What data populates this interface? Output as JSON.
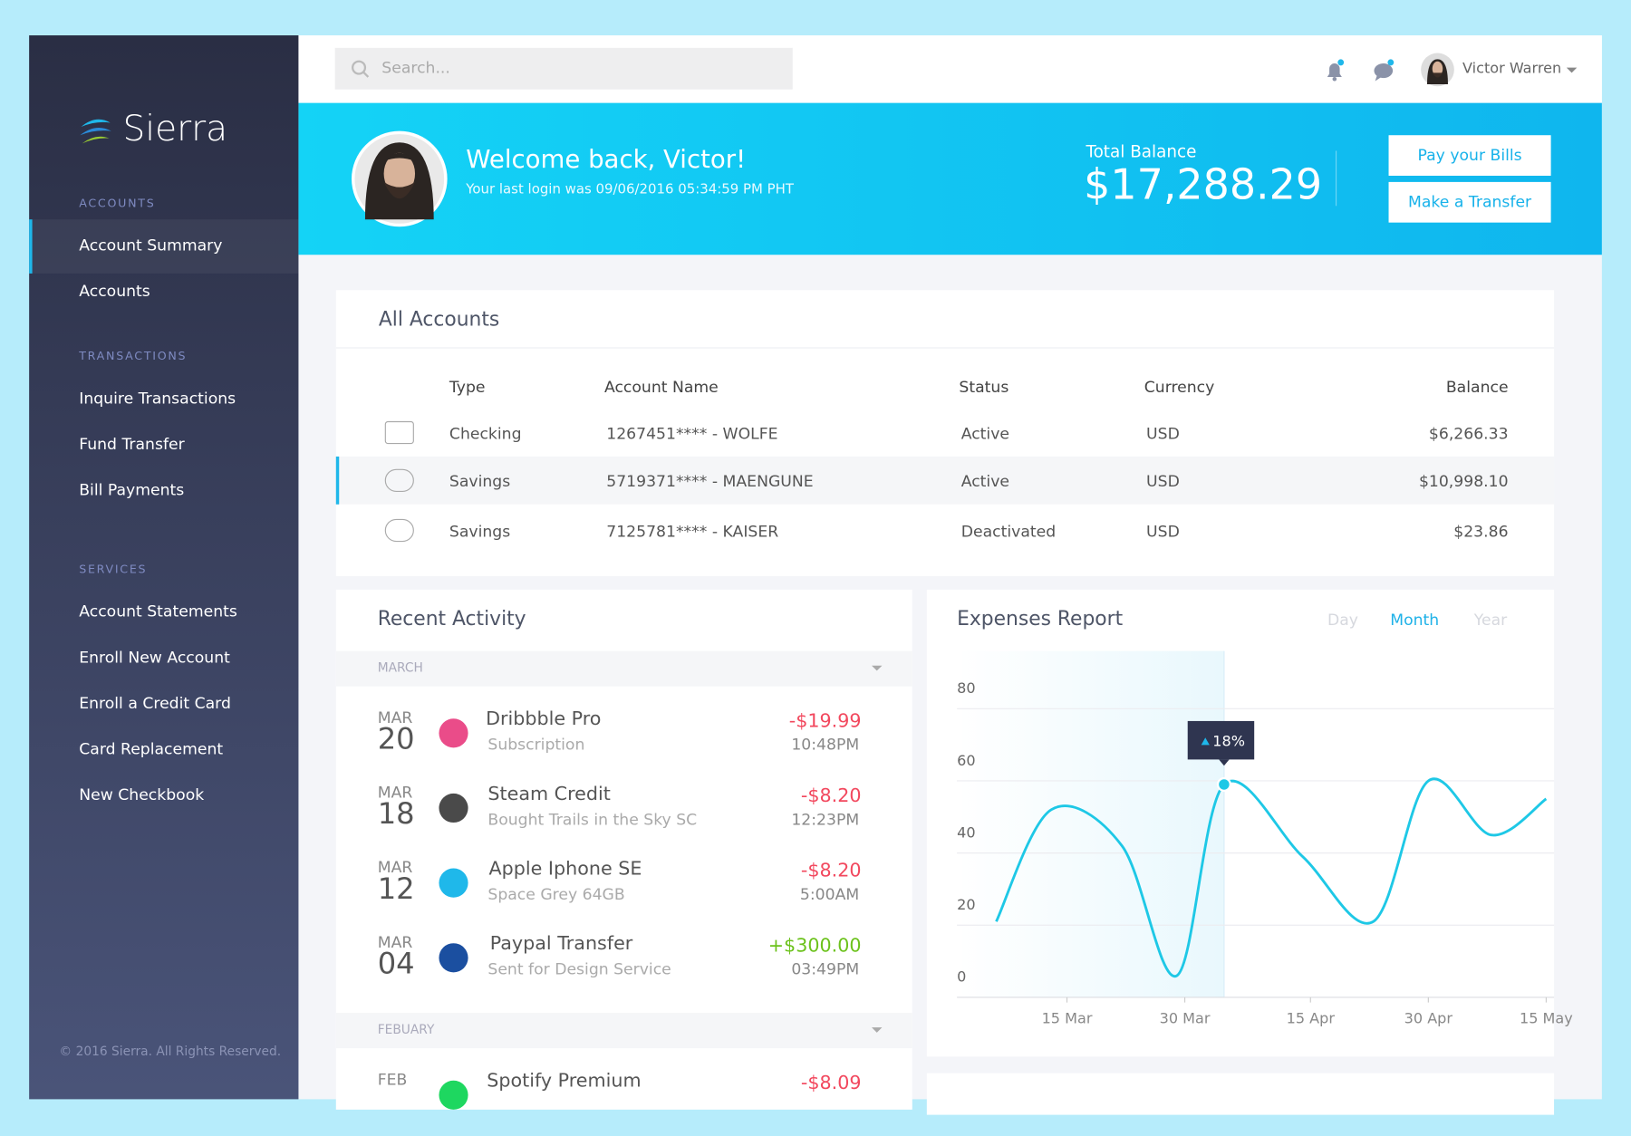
{
  "app": {
    "brand": "Sierra",
    "search_placeholder": "Search...",
    "user_name": "Victor Warren",
    "footer": "© 2016 Sierra. All Rights Reserved."
  },
  "sidebar": {
    "sections": [
      {
        "title": "ACCOUNTS",
        "items": [
          "Account Summary",
          "Accounts"
        ]
      },
      {
        "title": "TRANSACTIONS",
        "items": [
          "Inquire Transactions",
          "Fund Transfer",
          "Bill Payments"
        ]
      },
      {
        "title": "SERVICES",
        "items": [
          "Account Statements",
          "Enroll New Account",
          "Enroll a Credit Card",
          "Card Replacement",
          "New Checkbook"
        ]
      }
    ]
  },
  "banner": {
    "welcome": "Welcome back, Victor!",
    "last_login": "Your last login was 09/06/2016 05:34:59 PM PHT",
    "balance_label": "Total Balance",
    "balance": "$17,288.29",
    "buttons": [
      "Pay your Bills",
      "Make a Transfer"
    ]
  },
  "accounts": {
    "title": "All Accounts",
    "columns": [
      "Type",
      "Account Name",
      "Status",
      "Currency",
      "Balance"
    ],
    "rows": [
      [
        "Checking",
        "1267451**** - WOLFE",
        "Active",
        "USD",
        "$6,266.33"
      ],
      [
        "Savings",
        "5719371**** - MAENGUNE",
        "Active",
        "USD",
        "$10,998.10"
      ],
      [
        "Savings",
        "7125781**** - KAISER",
        "Deactivated",
        "USD",
        "$23.86"
      ]
    ]
  },
  "activity": {
    "title": "Recent Activity",
    "groups": [
      {
        "label": "MARCH",
        "items": [
          {
            "month": "MAR",
            "day": "20",
            "name": "Dribbble Pro",
            "detail": "Subscription",
            "amount": "-$19.99",
            "time": "10:48PM"
          },
          {
            "month": "MAR",
            "day": "18",
            "name": "Steam Credit",
            "detail": "Bought Trails in the Sky SC",
            "amount": "-$8.20",
            "time": "12:23PM"
          },
          {
            "month": "MAR",
            "day": "12",
            "name": "Apple Iphone SE",
            "detail": "Space Grey 64GB",
            "amount": "-$8.20",
            "time": "5:00AM"
          },
          {
            "month": "MAR",
            "day": "04",
            "name": "Paypal Transfer",
            "detail": "Sent for Design Service",
            "amount": "+$300.00",
            "time": "03:49PM"
          }
        ]
      },
      {
        "label": "FEBUARY",
        "items": [
          {
            "month": "FEB",
            "name": "Spotify Premium",
            "amount": "-$8.09"
          }
        ]
      }
    ]
  },
  "chart_data": {
    "type": "line",
    "title": "Expenses Report",
    "tabs": [
      "Day",
      "Month",
      "Year"
    ],
    "active_tab": 1,
    "x": [
      "6 Mar",
      "13 Mar",
      "22 Mar",
      "29 Mar",
      "4 Apr",
      "14 Apr",
      "23 Apr",
      "30 Apr",
      "8 May",
      "15 May"
    ],
    "series": [
      {
        "color": "#1ec8e6",
        "values": [
          21,
          52,
          42,
          6,
          59,
          39,
          21,
          60,
          45,
          55
        ]
      }
    ],
    "xlim": [
      "1 Mar",
      "16 May"
    ],
    "xticks": [
      "15 Mar",
      "30 Mar",
      "15 Apr",
      "30 Apr",
      "15 May"
    ],
    "ylim": [
      0,
      96
    ],
    "yticks": [
      0,
      20,
      40,
      60,
      80
    ],
    "grid": true,
    "annotation": {
      "text": "18%",
      "point": 4
    }
  }
}
